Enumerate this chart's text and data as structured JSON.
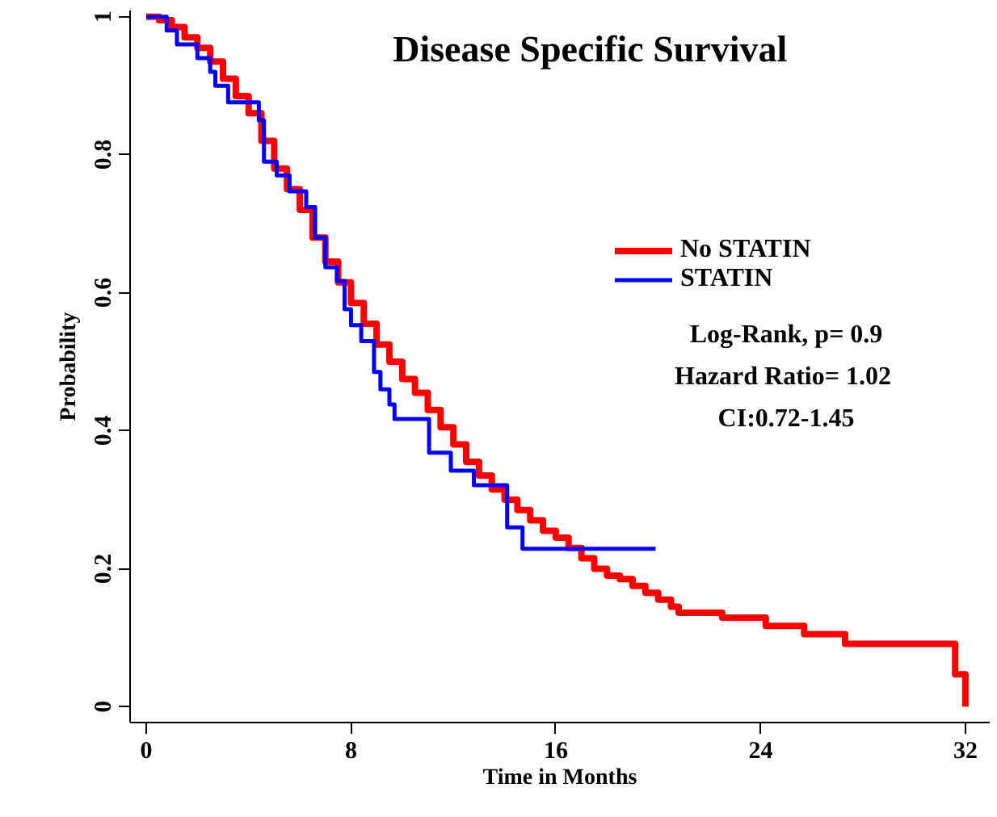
{
  "chart_data": {
    "type": "step",
    "title": "Disease Specific Survival",
    "xlabel": "Time in Months",
    "ylabel": "Probability",
    "xlim": [
      -0.63,
      32.95
    ],
    "ylim": [
      -0.023,
      1.009
    ],
    "xticks": [
      0,
      8,
      16,
      24,
      32
    ],
    "yticks": [
      0,
      0.2,
      0.4,
      0.6,
      0.8,
      1
    ],
    "grid": false,
    "legend": "right",
    "line_style": "solid",
    "annotations": [
      "Log-Rank, p= 0.9",
      "Hazard Ratio=  1.02",
      "CI:0.72-1.45"
    ],
    "series": [
      {
        "name": "No STATIN",
        "color": "#ff0000",
        "x": [
          0,
          0.5,
          1,
          1.5,
          2,
          2.5,
          3,
          3.5,
          4,
          4.5,
          5,
          5.5,
          6,
          6.5,
          7,
          7.5,
          8,
          8.5,
          9,
          9.5,
          10,
          10.5,
          11,
          11.5,
          12,
          12.5,
          13,
          13.5,
          14,
          14.5,
          15,
          15.5,
          16,
          16.5,
          17,
          17.5,
          18,
          18.5,
          19,
          19.5,
          20,
          20.5,
          20.8,
          22.5,
          24.2,
          25.7,
          27.3,
          31.6,
          32
        ],
        "values": [
          1,
          0.995,
          0.985,
          0.97,
          0.955,
          0.935,
          0.91,
          0.885,
          0.86,
          0.82,
          0.78,
          0.75,
          0.72,
          0.68,
          0.645,
          0.615,
          0.585,
          0.555,
          0.525,
          0.5,
          0.475,
          0.455,
          0.43,
          0.405,
          0.38,
          0.355,
          0.335,
          0.315,
          0.3,
          0.285,
          0.27,
          0.255,
          0.245,
          0.23,
          0.215,
          0.2,
          0.19,
          0.185,
          0.175,
          0.165,
          0.155,
          0.145,
          0.136,
          0.129,
          0.117,
          0.105,
          0.091,
          0.047,
          0
        ]
      },
      {
        "name": "STATIN",
        "color": "#0000ff",
        "x": [
          0,
          0.8,
          1.2,
          2.0,
          2.5,
          2.7,
          3.2,
          4.4,
          4.6,
          5.1,
          5.6,
          6.25,
          6.6,
          7.0,
          7.45,
          7.75,
          8.0,
          8.4,
          8.9,
          9.15,
          9.5,
          9.7,
          11.05,
          11.9,
          12.8,
          14.1,
          14.7,
          19.9
        ],
        "values": [
          1,
          0.98,
          0.96,
          0.94,
          0.92,
          0.9,
          0.876,
          0.85,
          0.79,
          0.77,
          0.747,
          0.724,
          0.68,
          0.637,
          0.617,
          0.576,
          0.553,
          0.53,
          0.485,
          0.46,
          0.438,
          0.417,
          0.368,
          0.342,
          0.321,
          0.26,
          0.229,
          0.229
        ]
      }
    ]
  }
}
